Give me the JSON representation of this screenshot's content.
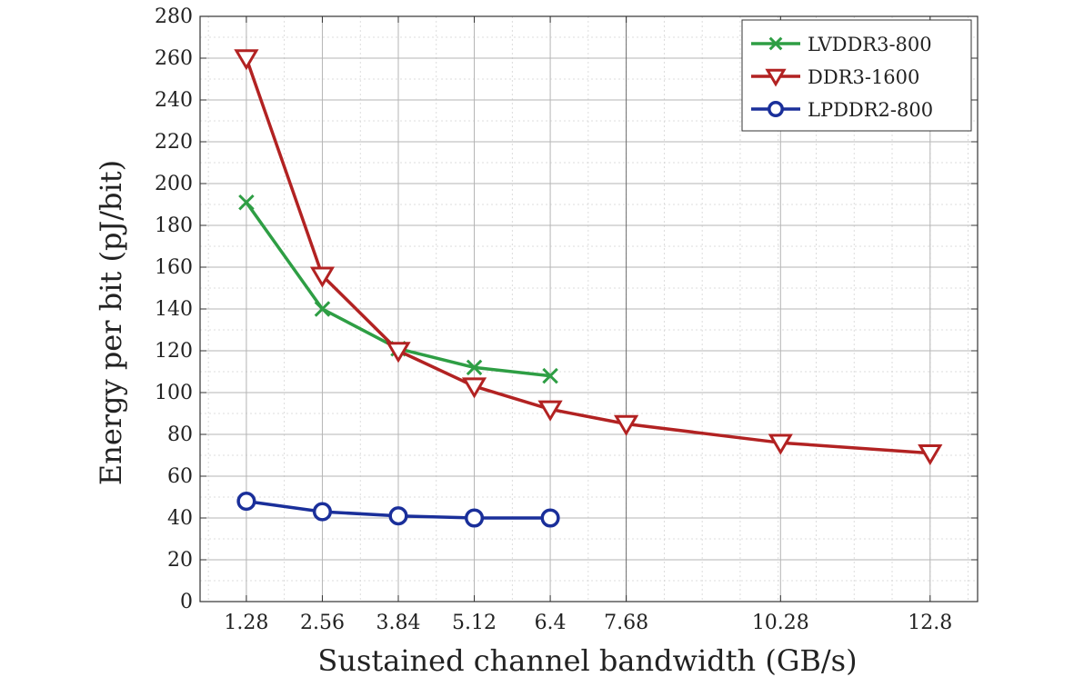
{
  "chart_data": {
    "type": "line",
    "title": "",
    "xlabel": "Sustained channel bandwidth (GB/s)",
    "ylabel": "Energy per bit (pJ/bit)",
    "xlim": [
      0.5,
      13.6
    ],
    "ylim": [
      0,
      280
    ],
    "xticks": [
      1.28,
      2.56,
      3.84,
      5.12,
      6.4,
      7.68,
      10.28,
      12.8
    ],
    "xtick_labels": [
      "1.28",
      "2.56",
      "3.84",
      "5.12",
      "6.4",
      "7.68",
      "10.28",
      "12.8"
    ],
    "yticks": [
      0,
      20,
      40,
      60,
      80,
      100,
      120,
      140,
      160,
      180,
      200,
      220,
      240,
      260,
      280
    ],
    "grid": true,
    "legend_position": "top-right",
    "series": [
      {
        "name": "LVDDR3-800",
        "color": "#2e9e44",
        "marker": "x",
        "x": [
          1.28,
          2.56,
          3.84,
          5.12,
          6.4
        ],
        "y": [
          191,
          140,
          121,
          112,
          108
        ]
      },
      {
        "name": "DDR3-1600",
        "color": "#b22222",
        "marker": "triangle-down",
        "x": [
          1.28,
          2.56,
          3.84,
          5.12,
          6.4,
          7.68,
          10.28,
          12.8
        ],
        "y": [
          260,
          156,
          120,
          103,
          92,
          85,
          76,
          71
        ]
      },
      {
        "name": "LPDDR2-800",
        "color": "#1a2f9a",
        "marker": "circle",
        "x": [
          1.28,
          2.56,
          3.84,
          5.12,
          6.4
        ],
        "y": [
          48,
          43,
          41,
          40,
          40
        ]
      }
    ]
  }
}
